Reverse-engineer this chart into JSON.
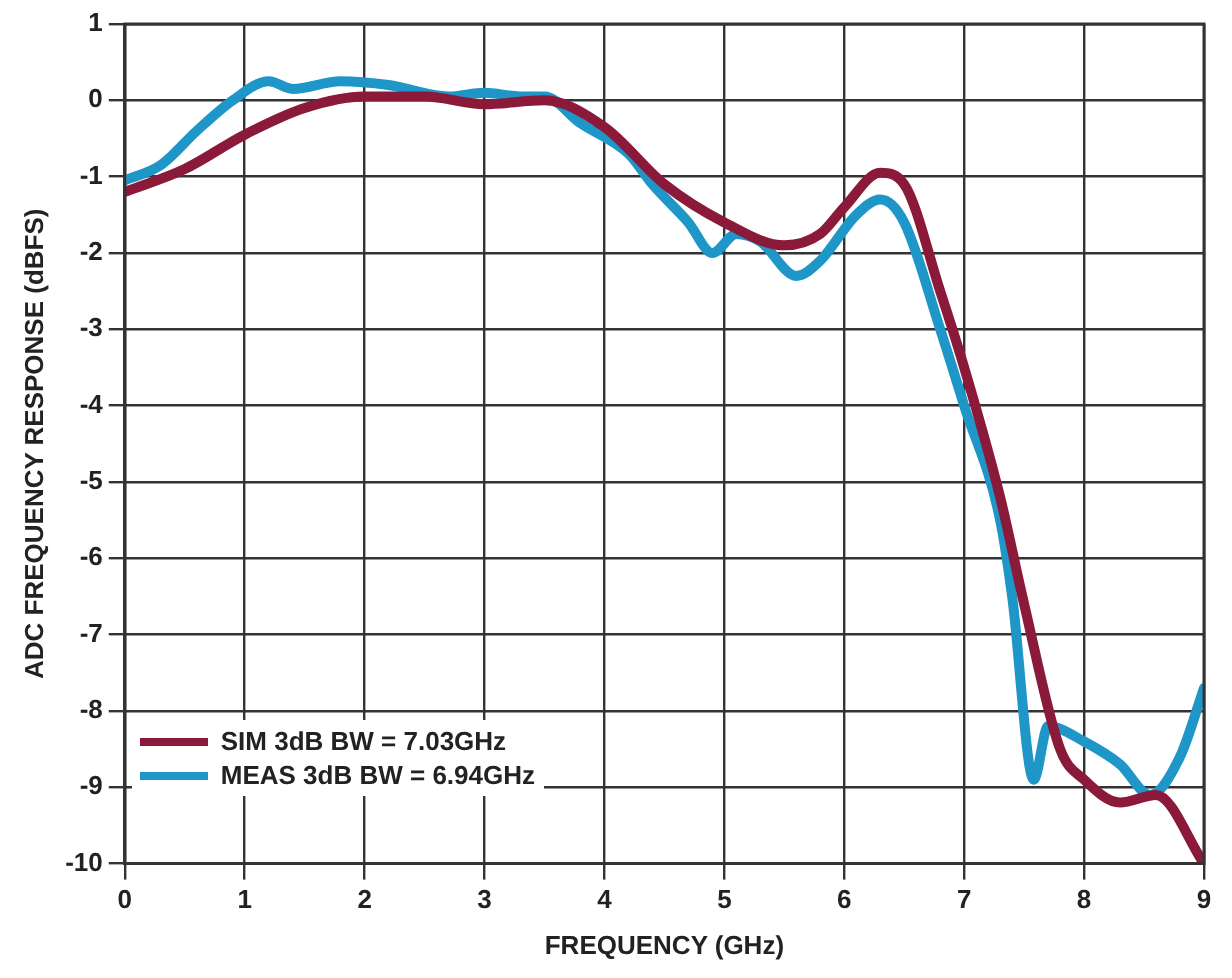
{
  "chart_data": {
    "type": "line",
    "xlabel": "FREQUENCY (GHz)",
    "ylabel": "ADC FREQUENCY RESPONSE (dBFS)",
    "xlim": [
      0,
      9
    ],
    "xticks": [
      0,
      1,
      2,
      3,
      4,
      5,
      6,
      7,
      8,
      9
    ],
    "ylim": [
      -10,
      1
    ],
    "yticks": [
      -10,
      -9,
      -8,
      -7,
      -6,
      -5,
      -4,
      -3,
      -2,
      -1,
      0,
      1
    ],
    "grid": true,
    "legend": "bottom left",
    "marker": "none",
    "line_style": "solid",
    "series": [
      {
        "name": "SIM 3dB BW = 7.03GHz",
        "color": "#8b1a3a",
        "x": [
          0,
          0.5,
          1,
          1.5,
          2,
          2.5,
          3,
          3.5,
          4,
          4.5,
          5,
          5.5,
          5.8,
          6,
          6.3,
          6.5,
          6.8,
          7,
          7.3,
          7.5,
          7.8,
          8,
          8.3,
          8.6,
          9
        ],
        "values": [
          -1.2,
          -0.9,
          -0.45,
          -0.1,
          0.05,
          0.05,
          -0.05,
          0,
          -0.35,
          -1.1,
          -1.6,
          -1.9,
          -1.75,
          -1.4,
          -0.95,
          -1.1,
          -2.5,
          -3.5,
          -5.2,
          -6.6,
          -8.5,
          -8.9,
          -9.2,
          -9.1,
          -10
        ]
      },
      {
        "name": "MEAS 3dB BW = 6.94GHz",
        "color": "#1e96c8",
        "x": [
          0,
          0.3,
          0.6,
          0.9,
          1.2,
          1.4,
          1.8,
          2.2,
          2.7,
          3,
          3.3,
          3.5,
          3.8,
          4.2,
          4.4,
          4.7,
          4.9,
          5.1,
          5.3,
          5.6,
          5.8,
          6.1,
          6.3,
          6.5,
          6.8,
          7,
          7.3,
          7.4,
          7.58,
          7.7,
          8,
          8.3,
          8.55,
          8.8,
          9
        ],
        "values": [
          -1.05,
          -0.85,
          -0.4,
          0,
          0.25,
          0.15,
          0.25,
          0.2,
          0.05,
          0.1,
          0.05,
          0.05,
          -0.3,
          -0.7,
          -1.1,
          -1.6,
          -2,
          -1.75,
          -1.85,
          -2.3,
          -2.1,
          -1.5,
          -1.3,
          -1.6,
          -3,
          -4,
          -5.5,
          -6.5,
          -8.9,
          -8.2,
          -8.4,
          -8.7,
          -9.1,
          -8.6,
          -7.7
        ]
      }
    ]
  }
}
